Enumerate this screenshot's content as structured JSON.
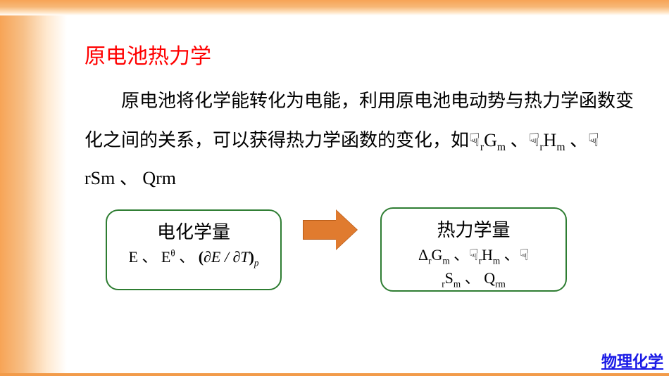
{
  "colors": {
    "gradient_orange": "#f7a456",
    "heading_red": "#ff0000",
    "body_black": "#000000",
    "box_border_green": "#2e7d32",
    "arrow_fill": "#e07b2f",
    "arrow_border": "#b85c18",
    "footer_blue": "#1a1ae6",
    "background": "#ffffff"
  },
  "typography": {
    "heading_fontsize": 30,
    "body_fontsize": 26,
    "box_title_fontsize": 26,
    "box_content_fontsize": 22,
    "footer_fontsize": 22,
    "line_height": 2.1
  },
  "heading": "原电池热力学",
  "body": {
    "text_part1": "原电池将化学能转化为电能，利用原电池电动势与热力学函数变化之间的关系，可以获得热力学函数的变化，如",
    "terms": "☟ᵣGₘ 、☟ᵣHₘ 、☟ rSm 、 Qrm"
  },
  "diagram": {
    "left_box": {
      "title": "电化学量",
      "line": "E 、 Eθ 、(∂E/∂T)ₚ"
    },
    "right_box": {
      "title": "热力学量",
      "line1": "ΔᵣGₘ 、☟ᵣHₘ 、☟",
      "line2": "ᵣSₘ 、 Qᵣₘ"
    },
    "box_border_radius": 18,
    "arrow_width": 80,
    "arrow_height": 56
  },
  "footer": "物理化学"
}
